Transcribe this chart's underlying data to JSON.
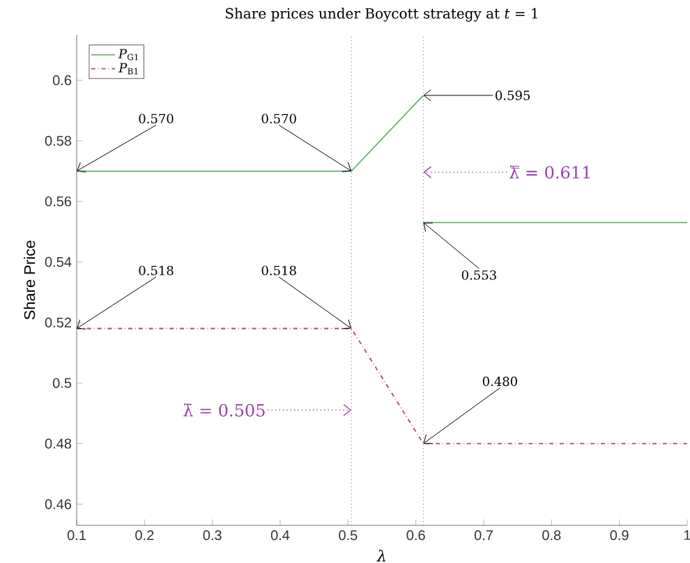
{
  "chart_data": {
    "type": "line",
    "title": "Share prices under Boycott strategy at *t* = 1",
    "xlabel": "*λ*",
    "ylabel": "Share Price",
    "xlim": [
      0.1,
      1
    ],
    "xticks": [
      0.1,
      0.2,
      0.3,
      0.4,
      0.5,
      0.6,
      0.7,
      0.8,
      0.9,
      1
    ],
    "ylim": [
      0.453,
      0.615
    ],
    "yticks": [
      0.46,
      0.48,
      0.5,
      0.52,
      0.54,
      0.56,
      0.58,
      0.6
    ],
    "series": [
      {
        "name": "*P*$_{G1}$",
        "color": "#66b26b",
        "line_style": "solid",
        "x": [
          0.1,
          0.505,
          0.611,
          null,
          0.611,
          1
        ],
        "values": [
          0.57,
          0.57,
          0.595,
          null,
          0.553,
          0.553
        ]
      },
      {
        "name": "*P*$_{B1}$",
        "color": "#b04a55",
        "line_style": "dashdot",
        "x": [
          0.1,
          0.505,
          0.611,
          1
        ],
        "values": [
          0.518,
          0.518,
          0.48,
          0.48
        ]
      }
    ],
    "ref_lines": [
      {
        "axis": "x",
        "value": 0.505,
        "label": "λ̄ = 0.505",
        "color": "#9b3fb0",
        "line_style": "dotted"
      },
      {
        "axis": "x",
        "value": 0.611,
        "label": "λ̿ = 0.611",
        "color": "#9b3fb0",
        "line_style": "dotted"
      }
    ],
    "annotations": [
      {
        "text": "0.570",
        "x": 0.1,
        "y": 0.57
      },
      {
        "text": "0.570",
        "x": 0.505,
        "y": 0.57
      },
      {
        "text": "0.595",
        "x": 0.611,
        "y": 0.595
      },
      {
        "text": "0.553",
        "x": 0.611,
        "y": 0.553
      },
      {
        "text": "0.518",
        "x": 0.1,
        "y": 0.518
      },
      {
        "text": "0.518",
        "x": 0.505,
        "y": 0.518
      },
      {
        "text": "0.480",
        "x": 0.611,
        "y": 0.48
      }
    ],
    "legend": "top left",
    "grid": false,
    "marker": "none"
  }
}
